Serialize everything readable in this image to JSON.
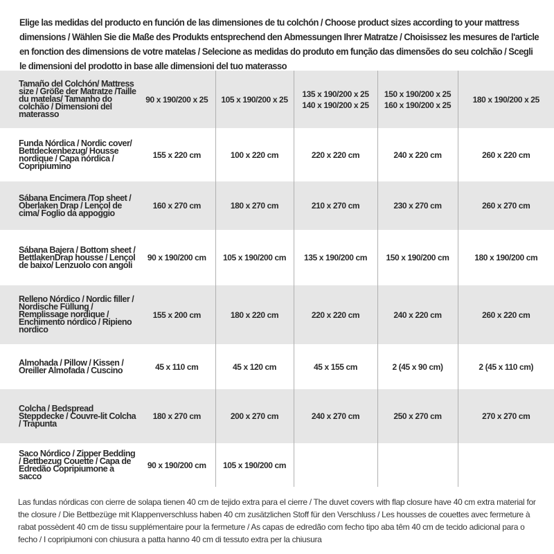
{
  "intro": "Elige las medidas del producto en función de las dimensiones de tu colchón / Choose product sizes according to your mattress dimensions / Wählen Sie die Maße des Produkts entsprechend den Abmessungen Ihrer Matratze / Choisissez les mesures de l'article en fonction des dimensions de votre matelas / Selecione as medidas do produto em função das dimensões do seu colchão / Scegli le dimensioni del prodotto in base alle dimensioni del tuo materasso",
  "header": {
    "label": "Tamaño del Colchón/ Mattress size / Größe der Matratze /Taille du matelas/ Tamanho do colchão / Dimensioni del materasso",
    "cols": [
      [
        "90 x 190/200 x 25"
      ],
      [
        "105 x 190/200 x 25"
      ],
      [
        "135 x 190/200 x 25",
        "140 x 190/200 x 25"
      ],
      [
        "150 x 190/200 x 25",
        "160 x 190/200 x 25"
      ],
      [
        "180 x 190/200 x 25"
      ]
    ]
  },
  "rows": [
    {
      "label": "Funda Nórdica /  Nordic cover/ Bettdeckenbezug/ Housse nordique  / Capa nórdica / Copripiumino",
      "values": [
        "155 x 220 cm",
        "100 x 220 cm",
        "220 x 220 cm",
        "240 x 220 cm",
        "260 x 220 cm"
      ]
    },
    {
      "label": "Sábana Encimera /Top sheet / Oberlaken Drap / Lençol de cima/ Foglio da appoggio",
      "values": [
        "160 x 270 cm",
        "180 x 270 cm",
        "210 x 270 cm",
        "230 x 270 cm",
        "260 x 270 cm"
      ]
    },
    {
      "label": "Sábana Bajera / Bottom sheet / BettlakenDrap housse / Lençol de baixo/ Lenzuolo con angoli",
      "values": [
        "90 x 190/200 cm",
        "105 x 190/200 cm",
        "135 x 190/200 cm",
        "150 x 190/200 cm",
        "180 x 190/200 cm"
      ]
    },
    {
      "label": "Relleno Nórdico / Nordic filler / Nordische Füllung / Remplissage nordique / Enchimento nórdico / Ripieno nordico",
      "values": [
        "155 x 200 cm",
        "180 x 220 cm",
        "220 x 220 cm",
        "240 x 220 cm",
        "260 x 220 cm"
      ]
    },
    {
      "label": "Almohada  / Pillow / Kissen / Oreiller Almofada / Cuscino",
      "values": [
        "45 x 110 cm",
        "45 x 120 cm",
        "45 x 155 cm",
        "2 (45 x 90 cm)",
        "2 (45 x 110 cm)"
      ]
    },
    {
      "label": "Colcha / Bedspread Steppdecke / Couvre-lit Colcha / Trapunta",
      "values": [
        "180 x 270 cm",
        "200 x 270 cm",
        "240 x 270 cm",
        "250 x 270 cm",
        "270 x 270 cm"
      ]
    },
    {
      "label": "Saco Nórdico / Zipper Bedding / Bettbezug Couette  / Capa de Edredão Copripiumone a sacco",
      "values": [
        "90 x 190/200 cm",
        "105 x 190/200 cm",
        "",
        "",
        ""
      ]
    }
  ],
  "note": "Las fundas nórdicas con cierre de solapa tienen 40 cm de tejido extra para el cierre  / The duvet covers with flap closure have 40 cm extra material for the closure / Die Bettbezüge mit Klappenverschluss haben 40 cm zusätzlichen Stoff für den Verschluss / Les housses de couettes avec fermeture à rabat possèdent 40 cm de tissu supplémentaire pour la fermeture / As capas de edredão com fecho tipo aba têm 40 cm de tecido adicional para o fecho / I copripiumoni con chiusura a patta hanno 40 cm di tessuto extra per la chiusura"
}
